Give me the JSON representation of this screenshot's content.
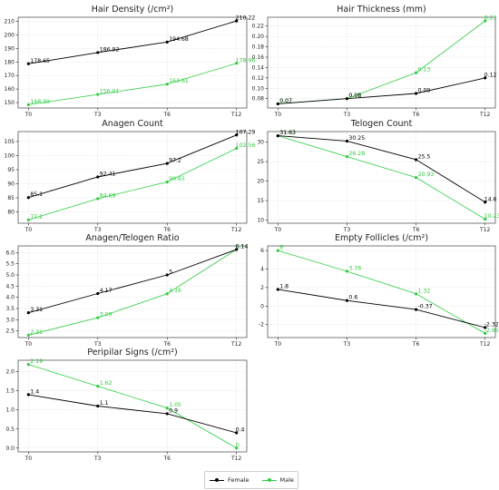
{
  "legend": {
    "female_label": "Female",
    "male_label": "Male"
  },
  "colors": {
    "female": "#000000",
    "male": "#2ecc40"
  },
  "chart_data": [
    {
      "type": "line",
      "title": "Hair Density (/cm²)",
      "categories": [
        "T0",
        "T3",
        "T6",
        "T12"
      ],
      "series": [
        {
          "name": "Female",
          "values": [
            178.65,
            186.92,
            194.68,
            210.22
          ]
        },
        {
          "name": "Male",
          "values": [
            148.39,
            156.01,
            163.61,
            178.96
          ]
        }
      ],
      "yticks": [
        150,
        160,
        170,
        180,
        190,
        200,
        210
      ],
      "ylim": [
        146,
        213
      ],
      "grid": true
    },
    {
      "type": "line",
      "title": "Hair Thickness (mm)",
      "categories": [
        "T0",
        "T3",
        "T6",
        "T12"
      ],
      "series": [
        {
          "name": "Female",
          "values": [
            0.07,
            0.08,
            0.09,
            0.12
          ]
        },
        {
          "name": "Male",
          "values": [
            0.07,
            0.08,
            0.13,
            0.23
          ]
        }
      ],
      "yticks": [
        "0.08",
        "0.10",
        "0.12",
        "0.14",
        "0.16",
        "0.18",
        "0.20",
        "0.22"
      ],
      "ylim": [
        0.062,
        0.237
      ],
      "grid": true
    },
    {
      "type": "line",
      "title": "Anagen Count",
      "categories": [
        "T0",
        "T3",
        "T6",
        "T12"
      ],
      "series": [
        {
          "name": "Female",
          "values": [
            85.1,
            92.41,
            97.2,
            107.29
          ]
        },
        {
          "name": "Male",
          "values": [
            77.2,
            84.69,
            90.65,
            102.56
          ]
        }
      ],
      "yticks": [
        80,
        85,
        90,
        95,
        100,
        105
      ],
      "ylim": [
        76,
        108.5
      ],
      "grid": true
    },
    {
      "type": "line",
      "title": "Telogen Count",
      "categories": [
        "T0",
        "T3",
        "T6",
        "T12"
      ],
      "series": [
        {
          "name": "Female",
          "values": [
            31.63,
            30.25,
            25.5,
            14.6
          ]
        },
        {
          "name": "Male",
          "values": [
            31.63,
            26.28,
            20.93,
            10.23
          ]
        }
      ],
      "yticks": [
        10,
        15,
        20,
        25,
        30
      ],
      "ylim": [
        9.2,
        32.7
      ],
      "grid": true
    },
    {
      "type": "line",
      "title": "Anagen/Telogen Ratio",
      "categories": [
        "T0",
        "T3",
        "T6",
        "T12"
      ],
      "series": [
        {
          "name": "Female",
          "values": [
            3.31,
            4.17,
            5.0,
            6.14
          ]
        },
        {
          "name": "Male",
          "values": [
            2.31,
            3.09,
            4.16,
            6.14
          ]
        }
      ],
      "yticks": [
        "2.5",
        "3.0",
        "3.5",
        "4.0",
        "4.5",
        "5.0",
        "5.5",
        "6.0"
      ],
      "ylim": [
        2.2,
        6.3
      ],
      "grid": true
    },
    {
      "type": "line",
      "title": "Empty Follicles (/cm²)",
      "categories": [
        "T0",
        "T3",
        "T6",
        "T12"
      ],
      "series": [
        {
          "name": "Female",
          "values": [
            1.8,
            0.6,
            -0.37,
            -2.32
          ]
        },
        {
          "name": "Male",
          "values": [
            6.0,
            3.76,
            1.32,
            -2.95
          ]
        }
      ],
      "yticks": [
        -2,
        0,
        2,
        4,
        6
      ],
      "ylim": [
        -3.4,
        6.5
      ],
      "grid": true
    },
    {
      "type": "line",
      "title": "Peripilar Signs (/cm²)",
      "categories": [
        "T0",
        "T3",
        "T6",
        "T12"
      ],
      "series": [
        {
          "name": "Female",
          "values": [
            1.4,
            1.1,
            0.9,
            0.4
          ]
        },
        {
          "name": "Male",
          "values": [
            2.19,
            1.62,
            1.05,
            0.0
          ]
        }
      ],
      "yticks": [
        "0.0",
        "0.5",
        "1.0",
        "1.5",
        "2.0"
      ],
      "ylim": [
        -0.1,
        2.3
      ],
      "grid": true
    }
  ]
}
